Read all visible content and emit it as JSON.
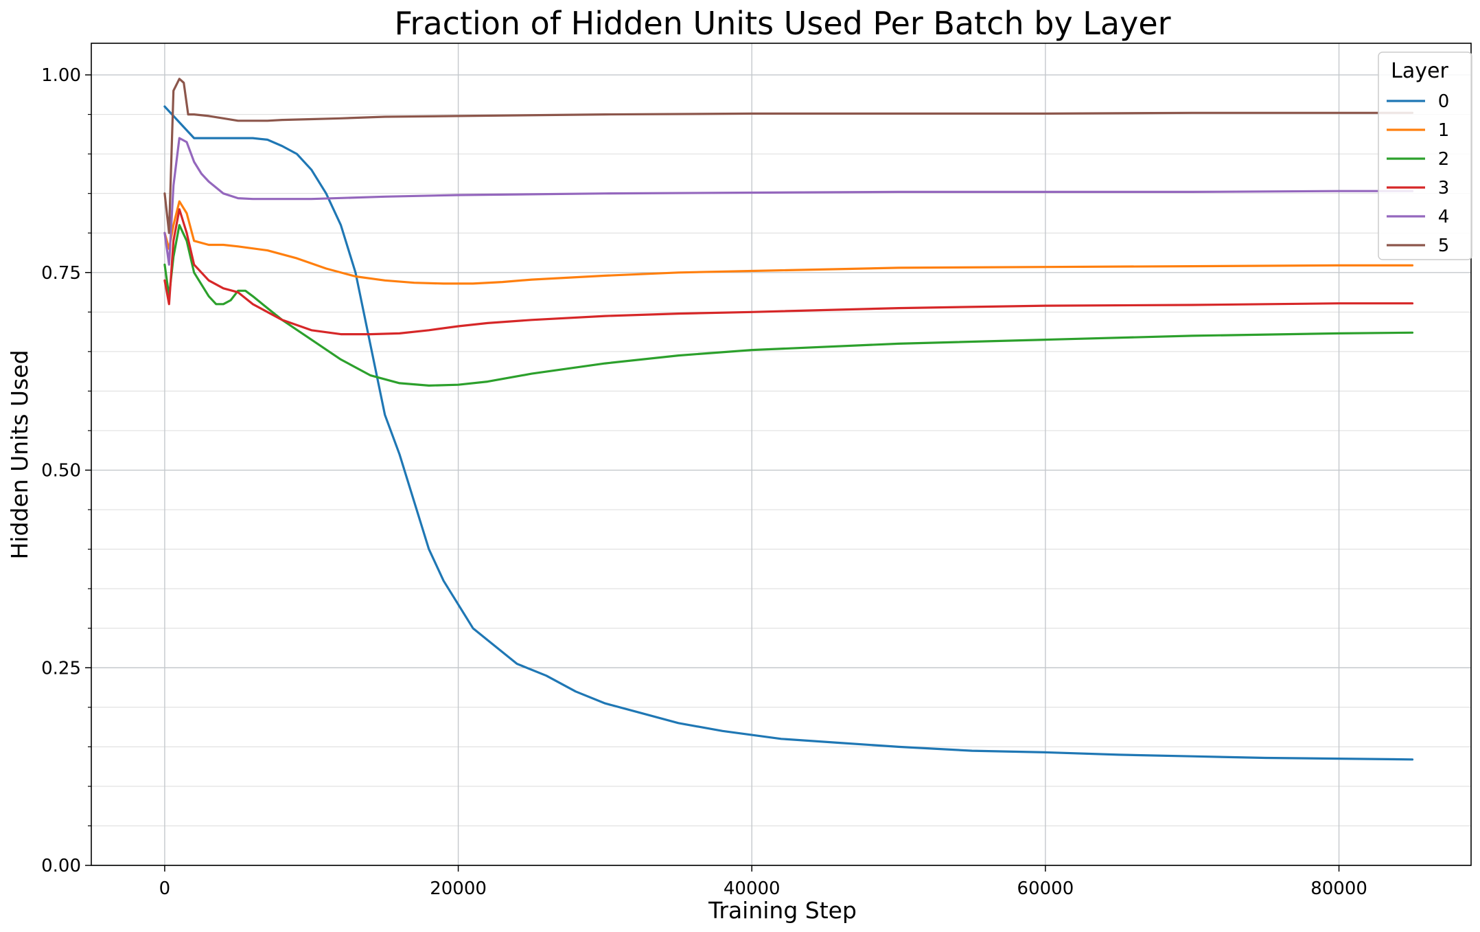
{
  "chart_data": {
    "type": "line",
    "title": "Fraction of Hidden Units Used Per Batch by Layer",
    "xlabel": "Training Step",
    "ylabel": "Hidden Units Used",
    "xlim": [
      -5000,
      89000
    ],
    "ylim": [
      0,
      1.04
    ],
    "xticks": [
      0,
      20000,
      40000,
      60000,
      80000
    ],
    "xtick_labels": [
      "0",
      "20000",
      "40000",
      "60000",
      "80000"
    ],
    "yticks": [
      0,
      0.25,
      0.5,
      0.75,
      1.0
    ],
    "ytick_labels": [
      "0.00",
      "0.25",
      "0.50",
      "0.75",
      "1.00"
    ],
    "minor_ytick_step": 0.05,
    "grid": true,
    "legend": {
      "title": "Layer",
      "position": "top-right"
    },
    "series": [
      {
        "name": "0",
        "color": "#1f77b4",
        "x": [
          0,
          500,
          1000,
          1500,
          2000,
          3000,
          4000,
          5000,
          6000,
          7000,
          8000,
          9000,
          10000,
          11000,
          12000,
          13000,
          14000,
          15000,
          16000,
          17000,
          18000,
          19000,
          20000,
          21000,
          22000,
          23000,
          24000,
          26000,
          28000,
          30000,
          32000,
          35000,
          38000,
          42000,
          46000,
          50000,
          55000,
          60000,
          65000,
          70000,
          75000,
          80000,
          85000
        ],
        "y": [
          0.96,
          0.95,
          0.94,
          0.93,
          0.92,
          0.92,
          0.92,
          0.92,
          0.92,
          0.918,
          0.91,
          0.9,
          0.88,
          0.85,
          0.81,
          0.75,
          0.66,
          0.57,
          0.52,
          0.46,
          0.4,
          0.36,
          0.33,
          0.3,
          0.285,
          0.27,
          0.255,
          0.24,
          0.22,
          0.205,
          0.195,
          0.18,
          0.17,
          0.16,
          0.155,
          0.15,
          0.145,
          0.143,
          0.14,
          0.138,
          0.136,
          0.135,
          0.134
        ]
      },
      {
        "name": "1",
        "color": "#ff7f0e",
        "x": [
          0,
          300,
          600,
          1000,
          1500,
          2000,
          3000,
          4000,
          5000,
          7000,
          9000,
          11000,
          13000,
          15000,
          17000,
          19000,
          21000,
          23000,
          25000,
          30000,
          35000,
          40000,
          50000,
          60000,
          70000,
          80000,
          85000
        ],
        "y": [
          0.8,
          0.78,
          0.81,
          0.84,
          0.825,
          0.79,
          0.785,
          0.785,
          0.783,
          0.778,
          0.768,
          0.755,
          0.745,
          0.74,
          0.737,
          0.736,
          0.736,
          0.738,
          0.741,
          0.746,
          0.75,
          0.752,
          0.756,
          0.757,
          0.758,
          0.759,
          0.759
        ]
      },
      {
        "name": "2",
        "color": "#2ca02c",
        "x": [
          0,
          300,
          600,
          1000,
          1500,
          2000,
          3000,
          3500,
          4000,
          4500,
          5000,
          5500,
          6000,
          7000,
          8000,
          10000,
          12000,
          14000,
          16000,
          18000,
          20000,
          22000,
          25000,
          30000,
          35000,
          40000,
          50000,
          60000,
          70000,
          80000,
          85000
        ],
        "y": [
          0.76,
          0.72,
          0.77,
          0.81,
          0.79,
          0.75,
          0.72,
          0.71,
          0.71,
          0.715,
          0.727,
          0.727,
          0.72,
          0.705,
          0.69,
          0.665,
          0.64,
          0.62,
          0.61,
          0.607,
          0.608,
          0.612,
          0.622,
          0.635,
          0.645,
          0.652,
          0.66,
          0.665,
          0.67,
          0.673,
          0.674
        ]
      },
      {
        "name": "3",
        "color": "#d62728",
        "x": [
          0,
          300,
          600,
          1000,
          1500,
          2000,
          3000,
          4000,
          5000,
          6000,
          7000,
          8000,
          10000,
          12000,
          14000,
          16000,
          18000,
          20000,
          22000,
          25000,
          30000,
          35000,
          40000,
          50000,
          60000,
          70000,
          80000,
          85000
        ],
        "y": [
          0.74,
          0.71,
          0.79,
          0.83,
          0.8,
          0.76,
          0.74,
          0.73,
          0.725,
          0.71,
          0.7,
          0.69,
          0.677,
          0.672,
          0.672,
          0.673,
          0.677,
          0.682,
          0.686,
          0.69,
          0.695,
          0.698,
          0.7,
          0.705,
          0.708,
          0.709,
          0.711,
          0.711
        ]
      },
      {
        "name": "4",
        "color": "#9467bd",
        "x": [
          0,
          300,
          600,
          1000,
          1500,
          2000,
          2500,
          3000,
          4000,
          5000,
          6000,
          7000,
          8000,
          10000,
          15000,
          20000,
          30000,
          40000,
          50000,
          60000,
          70000,
          80000,
          85000
        ],
        "y": [
          0.8,
          0.76,
          0.86,
          0.92,
          0.915,
          0.89,
          0.875,
          0.865,
          0.85,
          0.844,
          0.843,
          0.843,
          0.843,
          0.843,
          0.846,
          0.848,
          0.85,
          0.851,
          0.852,
          0.852,
          0.852,
          0.853,
          0.853
        ]
      },
      {
        "name": "5",
        "color": "#8c564b",
        "x": [
          0,
          300,
          600,
          1000,
          1300,
          1600,
          2000,
          3000,
          4000,
          5000,
          6000,
          7000,
          8000,
          10000,
          12000,
          15000,
          20000,
          30000,
          40000,
          50000,
          60000,
          70000,
          80000,
          85000
        ],
        "y": [
          0.85,
          0.8,
          0.98,
          0.995,
          0.99,
          0.95,
          0.95,
          0.948,
          0.945,
          0.942,
          0.942,
          0.942,
          0.943,
          0.944,
          0.945,
          0.947,
          0.948,
          0.95,
          0.951,
          0.951,
          0.951,
          0.952,
          0.952,
          0.952
        ]
      }
    ]
  }
}
